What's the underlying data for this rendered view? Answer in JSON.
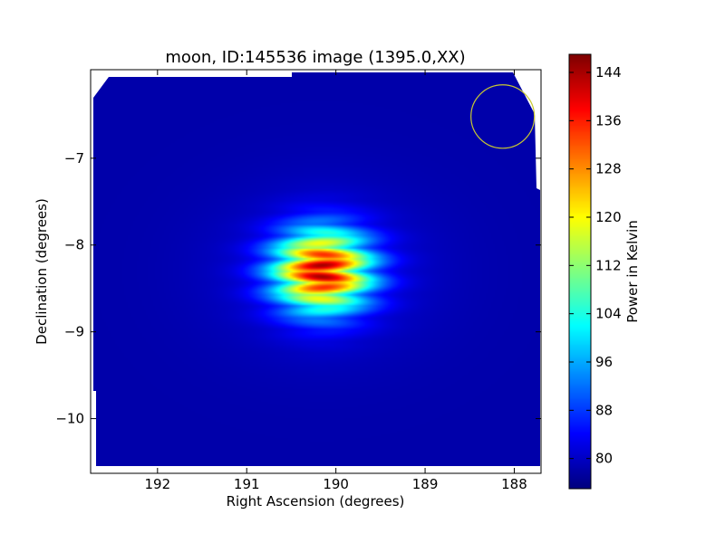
{
  "chart_data": {
    "type": "heatmap",
    "title": "moon, ID:145536 image (1395.0,XX)",
    "xlabel": "Right Ascension (degrees)",
    "ylabel": "Declination (degrees)",
    "xlim": [
      192.75,
      187.7
    ],
    "ylim": [
      -10.63,
      -5.98
    ],
    "x_ticks": [
      192,
      191,
      190,
      189,
      188
    ],
    "y_ticks": [
      -7,
      -8,
      -9,
      -10
    ],
    "x_tick_labels": [
      "192",
      "191",
      "190",
      "189",
      "188"
    ],
    "y_tick_labels": [
      "−7",
      "−8",
      "−9",
      "−10"
    ],
    "colorbar": {
      "label": "Power in Kelvin",
      "range": [
        75,
        147
      ],
      "ticks": [
        80,
        88,
        96,
        104,
        112,
        120,
        128,
        136,
        144
      ],
      "tick_labels": [
        "80",
        "88",
        "96",
        "104",
        "112",
        "120",
        "128",
        "136",
        "144"
      ],
      "colormap": "jet"
    },
    "background_level": 78,
    "source": {
      "ra_center": 190.15,
      "dec_center": -8.3,
      "peak": 146,
      "ra_sigma": 0.38,
      "dec_sigma": 0.32,
      "fringe_period_dec": 0.27
    },
    "beam_circle": {
      "ra": 188.13,
      "dec": -6.52,
      "radius_deg": 0.365,
      "color": "#c8c832"
    }
  }
}
